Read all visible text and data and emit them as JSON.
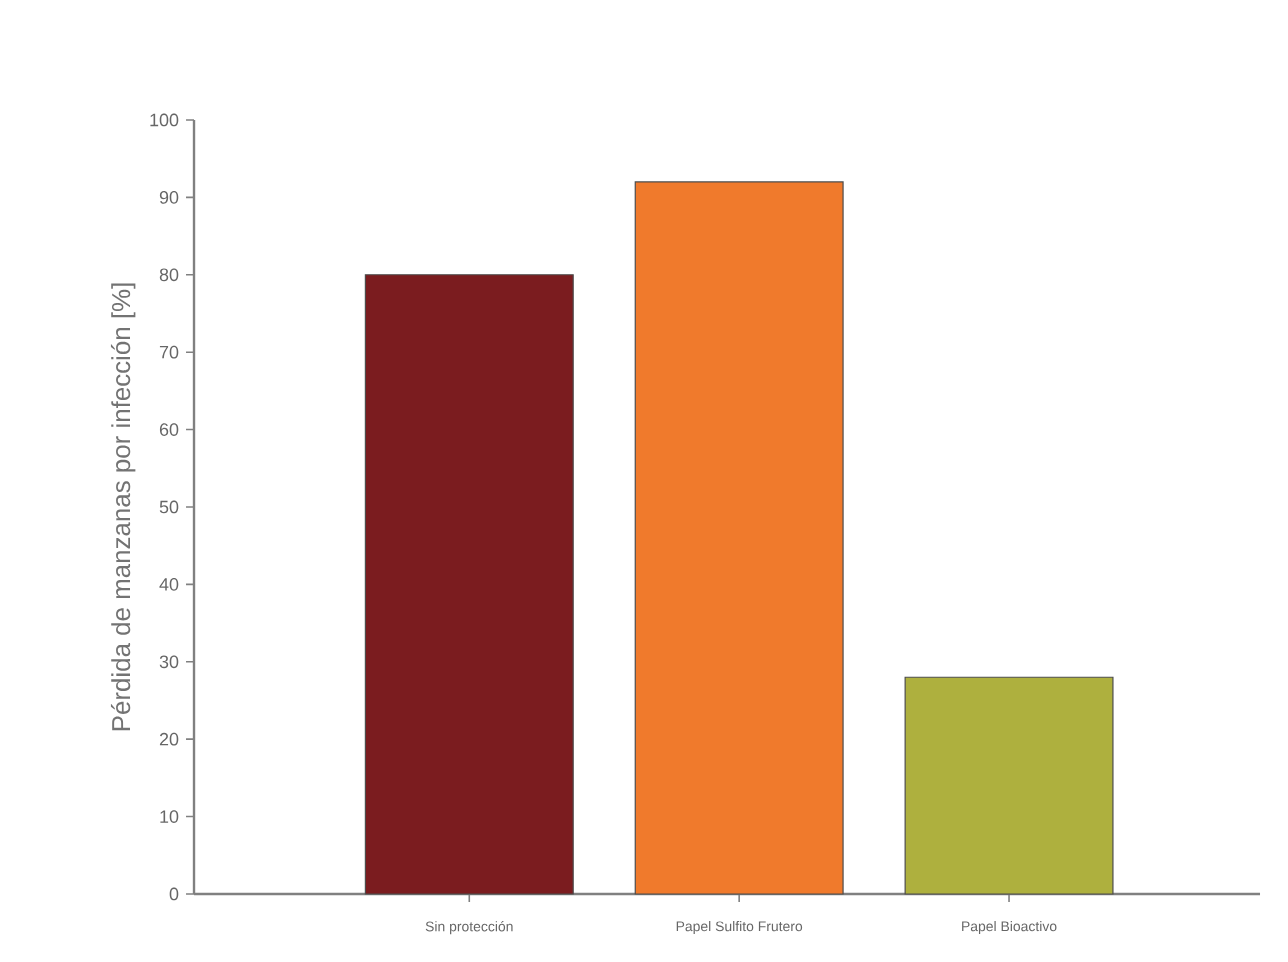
{
  "chart_data": {
    "type": "bar",
    "ylabel": "Pérdida de manzanas por infección [%]",
    "categories": [
      "Sin protección",
      "Papel Sulfito Frutero",
      "Papel Bioactivo"
    ],
    "values": [
      80,
      92,
      28
    ],
    "colors": [
      "#7b1c1f",
      "#f07a2c",
      "#aeb03e"
    ],
    "ylim": [
      0,
      100
    ],
    "yticks": [
      0,
      10,
      20,
      30,
      40,
      50,
      60,
      70,
      80,
      90,
      100
    ]
  }
}
